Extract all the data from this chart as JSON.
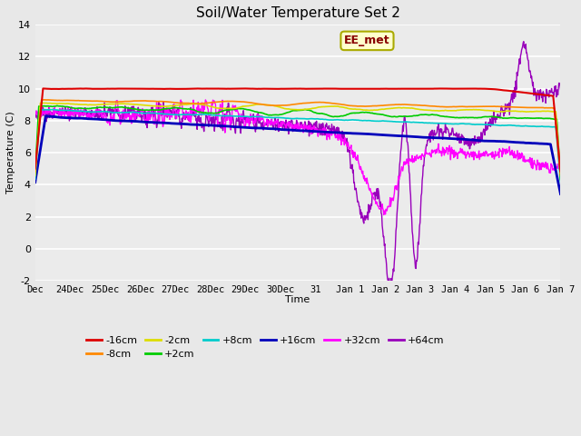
{
  "title": "Soil/Water Temperature Set 2",
  "xlabel": "Time",
  "ylabel": "Temperature (C)",
  "ylim": [
    -2,
    14
  ],
  "yticks": [
    -2,
    0,
    2,
    4,
    6,
    8,
    10,
    12,
    14
  ],
  "bg_color": "#e8e8e8",
  "ax_bg_color": "#ebebeb",
  "annotation_text": "EE_met",
  "annotation_bg": "#ffffcc",
  "annotation_border": "#aaaa00",
  "annotation_text_color": "#880000",
  "xtick_labels": [
    "Dec",
    "24Dec",
    "25Dec",
    "26Dec",
    "27Dec",
    "28Dec",
    "29Dec",
    "30Dec",
    "31",
    "Jan 1",
    "Jan 2",
    "Jan 3",
    "Jan 4",
    "Jan 5",
    "Jan 6",
    "Jan 7"
  ],
  "colors": {
    "-16cm": "#dd0000",
    "-8cm": "#ff8800",
    "-2cm": "#dddd00",
    "+2cm": "#00cc00",
    "+8cm": "#00cccc",
    "+16cm": "#0000bb",
    "+32cm": "#ff00ff",
    "+64cm": "#9900bb"
  },
  "legend_order": [
    "-16cm",
    "-8cm",
    "-2cm",
    "+2cm",
    "+8cm",
    "+16cm",
    "+32cm",
    "+64cm"
  ]
}
